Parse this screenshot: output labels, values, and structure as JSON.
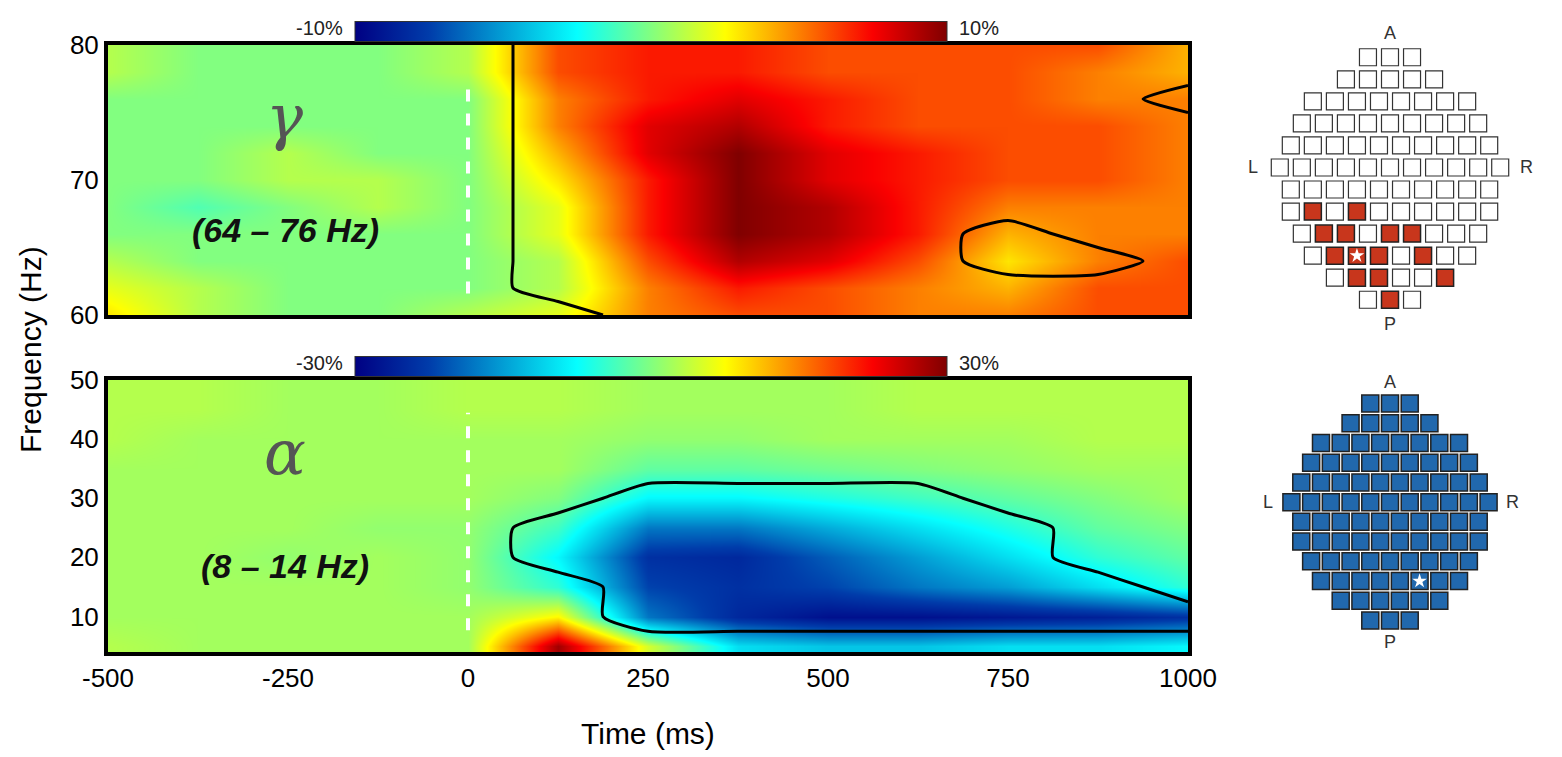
{
  "chart_data": {
    "type": "heatmap",
    "xlabel": "Time (ms)",
    "ylabel": "Frequency (Hz)",
    "panels": [
      {
        "symbol": "γ",
        "band": "(64 – 76 Hz)",
        "x": [
          -500,
          -375,
          -250,
          -125,
          0,
          125,
          250,
          375,
          500,
          625,
          750,
          875,
          1000
        ],
        "y": [
          60,
          62,
          64,
          66,
          68,
          70,
          72,
          74,
          76,
          78,
          80
        ],
        "z": [
          [
            3,
            1,
            0,
            0,
            1,
            2,
            5,
            6,
            6,
            5,
            5,
            6,
            6
          ],
          [
            2,
            1,
            0,
            0,
            0,
            1,
            5,
            7,
            6,
            5,
            4,
            6,
            6
          ],
          [
            1,
            0,
            0,
            0,
            0,
            1,
            6,
            9,
            8,
            6,
            3,
            5,
            6
          ],
          [
            0,
            0,
            0,
            0,
            0,
            2,
            7,
            10,
            9,
            7,
            4,
            5,
            5
          ],
          [
            0,
            -1,
            0,
            1,
            0,
            2,
            7,
            10,
            9,
            7,
            5,
            5,
            5
          ],
          [
            0,
            0,
            1,
            1,
            0,
            3,
            7,
            10,
            8,
            7,
            6,
            6,
            5
          ],
          [
            0,
            0,
            1,
            0,
            0,
            4,
            8,
            10,
            8,
            7,
            6,
            6,
            5
          ],
          [
            0,
            0,
            0,
            0,
            0,
            5,
            8,
            9,
            7,
            6,
            6,
            6,
            5
          ],
          [
            0,
            0,
            0,
            0,
            0,
            5,
            7,
            8,
            7,
            6,
            6,
            5,
            5
          ],
          [
            1,
            0,
            0,
            0,
            1,
            6,
            7,
            7,
            6,
            6,
            6,
            5,
            4
          ],
          [
            1,
            0,
            0,
            0,
            1,
            6,
            7,
            7,
            6,
            6,
            6,
            6,
            4
          ]
        ],
        "mask": [
          [
            0,
            0,
            0,
            0,
            0,
            0,
            1,
            1,
            1,
            1,
            1,
            1,
            1
          ],
          [
            0,
            0,
            0,
            0,
            0,
            1,
            1,
            1,
            1,
            1,
            1,
            1,
            1
          ],
          [
            0,
            0,
            0,
            0,
            0,
            1,
            1,
            1,
            1,
            1,
            0,
            0,
            1
          ],
          [
            0,
            0,
            0,
            0,
            0,
            1,
            1,
            1,
            1,
            1,
            0,
            1,
            1
          ],
          [
            0,
            0,
            0,
            0,
            0,
            1,
            1,
            1,
            1,
            1,
            1,
            1,
            1
          ],
          [
            0,
            0,
            0,
            0,
            0,
            1,
            1,
            1,
            1,
            1,
            1,
            1,
            1
          ],
          [
            0,
            0,
            0,
            0,
            0,
            1,
            1,
            1,
            1,
            1,
            1,
            1,
            1
          ],
          [
            0,
            0,
            0,
            0,
            0,
            1,
            1,
            1,
            1,
            1,
            1,
            1,
            1
          ],
          [
            0,
            0,
            0,
            0,
            0,
            1,
            1,
            1,
            1,
            1,
            1,
            1,
            0
          ],
          [
            0,
            0,
            0,
            0,
            0,
            1,
            1,
            1,
            1,
            1,
            1,
            1,
            1
          ],
          [
            0,
            0,
            0,
            0,
            0,
            1,
            1,
            1,
            1,
            1,
            1,
            1,
            1
          ]
        ],
        "onset": 0,
        "xlim": [
          -500,
          1000
        ],
        "ylim": [
          60,
          80
        ],
        "yticks": [
          60,
          70,
          80
        ],
        "tick_labels": "y",
        "colorbar": {
          "range": [
            -10,
            10
          ],
          "ticks": [
            {
              "value": -10,
              "label": "-10%"
            },
            {
              "value": 10,
              "label": "10%"
            }
          ]
        },
        "topography": {
          "labels": {
            "anterior": "A",
            "posterior": "P",
            "left": "L",
            "right": "R"
          },
          "color": "#c8361c",
          "sensors": [
            [
              0,
              0,
              0
            ],
            [
              0,
              0,
              0,
              0,
              0
            ],
            [
              0,
              0,
              0,
              0,
              0,
              0,
              0,
              0
            ],
            [
              0,
              0,
              0,
              0,
              0,
              0,
              0,
              0,
              0
            ],
            [
              0,
              0,
              0,
              0,
              0,
              0,
              0,
              0,
              0,
              0
            ],
            [
              0,
              0,
              0,
              0,
              0,
              0,
              0,
              0,
              0,
              0,
              0
            ],
            [
              0,
              0,
              0,
              0,
              0,
              0,
              0,
              0,
              0,
              0
            ],
            [
              0,
              1,
              0,
              1,
              0,
              0,
              0,
              0,
              0,
              0
            ],
            [
              0,
              1,
              1,
              0,
              1,
              1,
              0,
              0,
              0
            ],
            [
              0,
              1,
              1,
              1,
              0,
              1,
              0,
              0
            ],
            [
              0,
              1,
              1,
              0,
              0,
              1
            ],
            [
              0,
              1,
              0
            ]
          ],
          "star": [
            9,
            2
          ]
        }
      },
      {
        "symbol": "α",
        "band": "(8 – 14 Hz)",
        "x": [
          -500,
          -375,
          -250,
          -125,
          0,
          125,
          250,
          375,
          500,
          625,
          750,
          875,
          1000
        ],
        "y": [
          5,
          10,
          15,
          20,
          25,
          30,
          35,
          40,
          45,
          50
        ],
        "z": [
          [
            3,
            2,
            2,
            2,
            2,
            28,
            5,
            -10,
            -12,
            -12,
            -10,
            -10,
            -8
          ],
          [
            2,
            2,
            2,
            2,
            2,
            8,
            -18,
            -25,
            -28,
            -28,
            -27,
            -26,
            -24
          ],
          [
            2,
            2,
            2,
            2,
            1,
            -5,
            -22,
            -24,
            -22,
            -18,
            -15,
            -10,
            -5
          ],
          [
            2,
            2,
            1,
            2,
            1,
            -8,
            -24,
            -25,
            -20,
            -15,
            -10,
            -5,
            -2
          ],
          [
            2,
            2,
            2,
            1,
            1,
            -4,
            -18,
            -18,
            -14,
            -10,
            -6,
            -2,
            0
          ],
          [
            2,
            2,
            2,
            2,
            2,
            0,
            -8,
            -8,
            -6,
            -4,
            -2,
            0,
            2
          ],
          [
            2,
            2,
            2,
            2,
            2,
            2,
            -2,
            -2,
            -1,
            0,
            1,
            2,
            2
          ],
          [
            3,
            2,
            2,
            2,
            2,
            2,
            1,
            1,
            2,
            2,
            2,
            3,
            3
          ],
          [
            3,
            3,
            2,
            2,
            3,
            3,
            2,
            2,
            2,
            3,
            3,
            3,
            3
          ],
          [
            3,
            3,
            2,
            2,
            3,
            3,
            2,
            2,
            2,
            3,
            3,
            3,
            3
          ]
        ],
        "mask": [
          [
            0,
            0,
            0,
            0,
            0,
            0,
            0,
            0,
            0,
            0,
            0,
            0,
            0
          ],
          [
            0,
            0,
            0,
            0,
            0,
            0,
            1,
            1,
            1,
            1,
            1,
            1,
            1
          ],
          [
            0,
            0,
            0,
            0,
            0,
            0,
            1,
            1,
            1,
            1,
            1,
            1,
            0
          ],
          [
            0,
            0,
            0,
            0,
            0,
            1,
            1,
            1,
            1,
            1,
            1,
            0,
            0
          ],
          [
            0,
            0,
            0,
            0,
            0,
            1,
            1,
            1,
            1,
            1,
            1,
            0,
            0
          ],
          [
            0,
            0,
            0,
            0,
            0,
            0,
            1,
            1,
            1,
            1,
            0,
            0,
            0
          ],
          [
            0,
            0,
            0,
            0,
            0,
            0,
            0,
            0,
            0,
            0,
            0,
            0,
            0
          ],
          [
            0,
            0,
            0,
            0,
            0,
            0,
            0,
            0,
            0,
            0,
            0,
            0,
            0
          ],
          [
            0,
            0,
            0,
            0,
            0,
            0,
            0,
            0,
            0,
            0,
            0,
            0,
            0
          ],
          [
            0,
            0,
            0,
            0,
            0,
            0,
            0,
            0,
            0,
            0,
            0,
            0,
            0
          ]
        ],
        "onset": 0,
        "xlim": [
          -500,
          1000
        ],
        "ylim": [
          4,
          50
        ],
        "xticks": [
          -500,
          -250,
          0,
          250,
          500,
          750,
          1000
        ],
        "yticks": [
          10,
          20,
          30,
          40,
          50
        ],
        "colorbar": {
          "range": [
            -30,
            30
          ],
          "ticks": [
            {
              "value": -30,
              "label": "-30%"
            },
            {
              "value": 30,
              "label": "30%"
            }
          ]
        },
        "topography": {
          "labels": {
            "anterior": "A",
            "posterior": "P",
            "left": "L",
            "right": "R"
          },
          "color": "#2168ad",
          "sensors": [
            [
              1,
              1,
              1
            ],
            [
              1,
              1,
              1,
              1,
              1
            ],
            [
              1,
              1,
              1,
              1,
              1,
              1,
              1,
              1
            ],
            [
              1,
              1,
              1,
              1,
              1,
              1,
              1,
              1,
              1
            ],
            [
              1,
              1,
              1,
              1,
              1,
              1,
              1,
              1,
              1,
              1
            ],
            [
              1,
              1,
              1,
              1,
              1,
              1,
              1,
              1,
              1,
              1,
              1
            ],
            [
              1,
              1,
              1,
              1,
              1,
              1,
              1,
              1,
              1,
              1
            ],
            [
              1,
              1,
              1,
              1,
              1,
              1,
              1,
              1,
              1,
              1
            ],
            [
              1,
              1,
              1,
              1,
              1,
              1,
              1,
              1,
              1
            ],
            [
              1,
              1,
              1,
              1,
              1,
              1,
              1,
              1
            ],
            [
              1,
              1,
              1,
              1,
              1,
              1
            ],
            [
              1,
              1,
              1
            ]
          ],
          "star": [
            9,
            5
          ]
        }
      }
    ]
  }
}
